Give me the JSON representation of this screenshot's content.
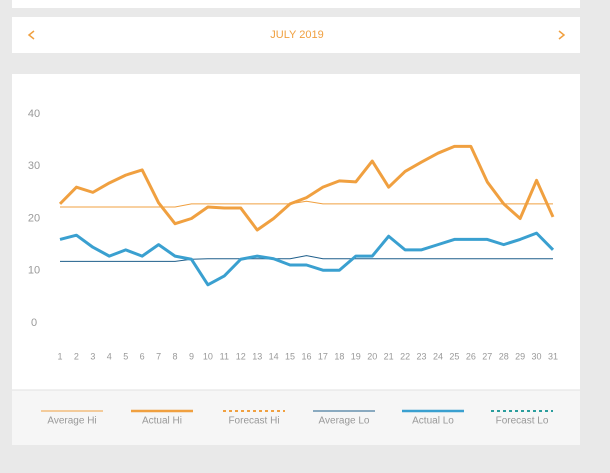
{
  "header": {
    "month": "JULY 2019"
  },
  "chart_data": {
    "type": "line",
    "x": [
      1,
      2,
      3,
      4,
      5,
      6,
      7,
      8,
      9,
      10,
      11,
      12,
      13,
      14,
      15,
      16,
      17,
      18,
      19,
      20,
      21,
      22,
      23,
      24,
      25,
      26,
      27,
      28,
      29,
      30,
      31
    ],
    "xlim": [
      1,
      31
    ],
    "ylim": [
      0,
      40
    ],
    "yticks": [
      0,
      10,
      20,
      30,
      40
    ],
    "series": [
      {
        "name": "Average Hi",
        "color": "#f0a040",
        "weight": "thin",
        "dash": false,
        "values": [
          22.2,
          22.2,
          22.2,
          22.2,
          22.2,
          22.2,
          22.2,
          22.2,
          22.8,
          22.8,
          22.8,
          22.8,
          22.8,
          22.8,
          22.8,
          23.3,
          22.8,
          22.8,
          22.8,
          22.8,
          22.8,
          22.8,
          22.8,
          22.8,
          22.8,
          22.8,
          22.8,
          22.8,
          22.8,
          22.8,
          22.8
        ]
      },
      {
        "name": "Actual Hi",
        "color": "#f0a040",
        "weight": "thick",
        "dash": false,
        "values": [
          22.8,
          26,
          25,
          26.8,
          28.3,
          29.3,
          23,
          19,
          20,
          22.2,
          22,
          22,
          17.8,
          20,
          22.8,
          24,
          26,
          27.2,
          27,
          31,
          26,
          29,
          30.8,
          32.5,
          33.8,
          33.8,
          27,
          22.8,
          20,
          27.3,
          20.3
        ]
      },
      {
        "name": "Forecast Hi",
        "color": "#f0a040",
        "weight": "thin",
        "dash": true,
        "values": [
          null,
          null,
          null,
          null,
          null,
          null,
          null,
          null,
          null,
          null,
          null,
          null,
          null,
          null,
          null,
          null,
          null,
          null,
          null,
          null,
          null,
          null,
          null,
          null,
          null,
          null,
          null,
          null,
          null,
          null,
          null
        ]
      },
      {
        "name": "Average Lo",
        "color": "#1f5f8b",
        "weight": "thin",
        "dash": false,
        "values": [
          11.8,
          11.8,
          11.8,
          11.8,
          11.8,
          11.8,
          11.8,
          11.8,
          12.2,
          12.3,
          12.3,
          12.3,
          12.3,
          12.3,
          12.3,
          12.9,
          12.3,
          12.3,
          12.3,
          12.3,
          12.3,
          12.3,
          12.3,
          12.3,
          12.3,
          12.3,
          12.3,
          12.3,
          12.3,
          12.3,
          12.3
        ]
      },
      {
        "name": "Actual Lo",
        "color": "#3aa0d0",
        "weight": "thick",
        "dash": false,
        "values": [
          16,
          16.8,
          14.5,
          12.8,
          14,
          12.8,
          15,
          12.8,
          12.2,
          7.3,
          9,
          12.2,
          12.8,
          12.3,
          11.1,
          11.1,
          10.1,
          10.1,
          12.8,
          12.8,
          16.6,
          14,
          14,
          15,
          16,
          16,
          16,
          15,
          16,
          17.2,
          14
        ]
      },
      {
        "name": "Forecast Lo",
        "color": "#2a9d9d",
        "weight": "thin",
        "dash": true,
        "values": [
          null,
          null,
          null,
          null,
          null,
          null,
          null,
          null,
          null,
          null,
          null,
          null,
          null,
          null,
          null,
          null,
          null,
          null,
          null,
          null,
          null,
          null,
          null,
          null,
          null,
          null,
          null,
          null,
          null,
          null,
          null
        ]
      }
    ]
  }
}
